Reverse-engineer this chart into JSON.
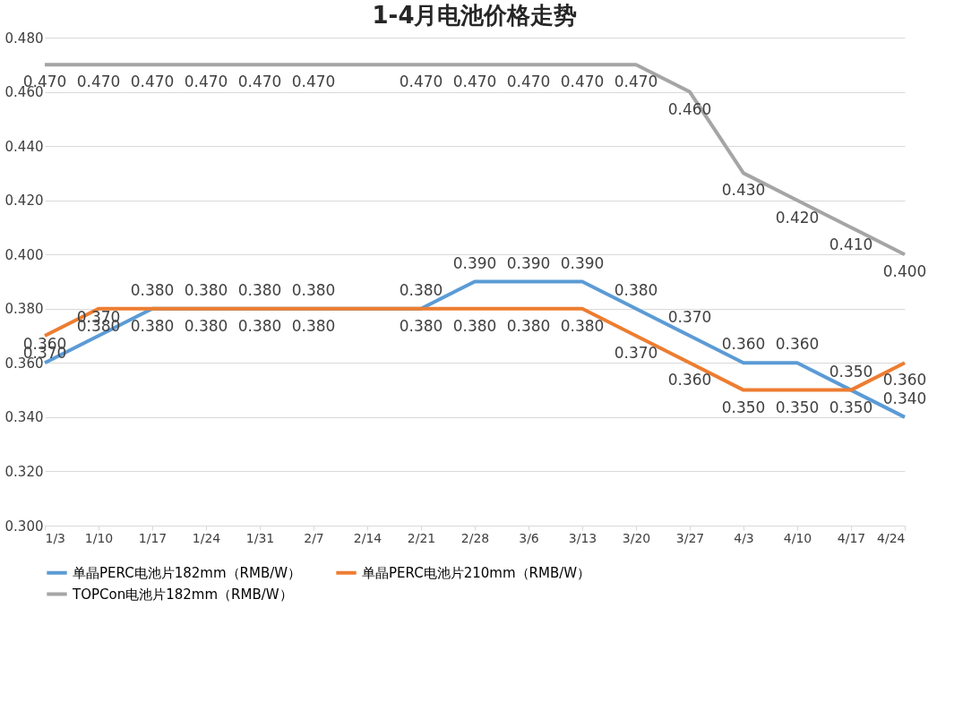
{
  "chart_data": {
    "type": "line",
    "title": "1-4月电池价格走势",
    "categories": [
      "1/3",
      "1/10",
      "1/17",
      "1/24",
      "1/31",
      "2/7",
      "2/14",
      "2/21",
      "2/28",
      "3/6",
      "3/13",
      "3/20",
      "3/27",
      "4/3",
      "4/10",
      "4/17",
      "4/24"
    ],
    "series": [
      {
        "name": "单晶PERC电池片182mm（RMB/W）",
        "color": "#5b9bd5",
        "values": [
          0.36,
          0.37,
          0.38,
          0.38,
          0.38,
          0.38,
          0.38,
          0.38,
          0.39,
          0.39,
          0.39,
          0.38,
          0.37,
          0.36,
          0.36,
          0.35,
          0.34
        ],
        "value_labels": [
          "0.360",
          "0.370",
          "0.380",
          "0.380",
          "0.380",
          "0.380",
          null,
          "0.380",
          "0.390",
          "0.390",
          "0.390",
          "0.380",
          "0.370",
          "0.360",
          "0.360",
          "0.350",
          "0.340"
        ]
      },
      {
        "name": "单晶PERC电池片210mm（RMB/W）",
        "color": "#ed7d31",
        "values": [
          0.37,
          0.38,
          0.38,
          0.38,
          0.38,
          0.38,
          0.38,
          0.38,
          0.38,
          0.38,
          0.38,
          0.37,
          0.36,
          0.35,
          0.35,
          0.35,
          0.36
        ],
        "value_labels": [
          "0.370",
          "0.380",
          "0.380",
          "0.380",
          "0.380",
          "0.380",
          null,
          "0.380",
          "0.380",
          "0.380",
          "0.380",
          "0.370",
          "0.360",
          "0.350",
          "0.350",
          "0.350",
          "0.360"
        ]
      },
      {
        "name": "TOPCon电池片182mm（RMB/W）",
        "color": "#a5a5a5",
        "values": [
          0.47,
          0.47,
          0.47,
          0.47,
          0.47,
          0.47,
          0.47,
          0.47,
          0.47,
          0.47,
          0.47,
          0.47,
          0.46,
          0.43,
          0.42,
          0.41,
          0.4
        ],
        "value_labels": [
          "0.470",
          "0.470",
          "0.470",
          "0.470",
          "0.470",
          "0.470",
          null,
          "0.470",
          "0.470",
          "0.470",
          "0.470",
          "0.470",
          "0.460",
          "0.430",
          "0.420",
          "0.410",
          "0.400"
        ]
      }
    ],
    "ylim": [
      0.3,
      0.48
    ],
    "yticks": [
      {
        "value": 0.3,
        "label": "0.300"
      },
      {
        "value": 0.32,
        "label": "0.320"
      },
      {
        "value": 0.34,
        "label": "0.340"
      },
      {
        "value": 0.36,
        "label": "0.360"
      },
      {
        "value": 0.38,
        "label": "0.380"
      },
      {
        "value": 0.4,
        "label": "0.400"
      },
      {
        "value": 0.42,
        "label": "0.420"
      },
      {
        "value": 0.44,
        "label": "0.440"
      },
      {
        "value": 0.46,
        "label": "0.460"
      },
      {
        "value": 0.48,
        "label": "0.480"
      }
    ],
    "grid": "y",
    "legend": "bottom",
    "marker": "none",
    "line_style": "solid"
  }
}
